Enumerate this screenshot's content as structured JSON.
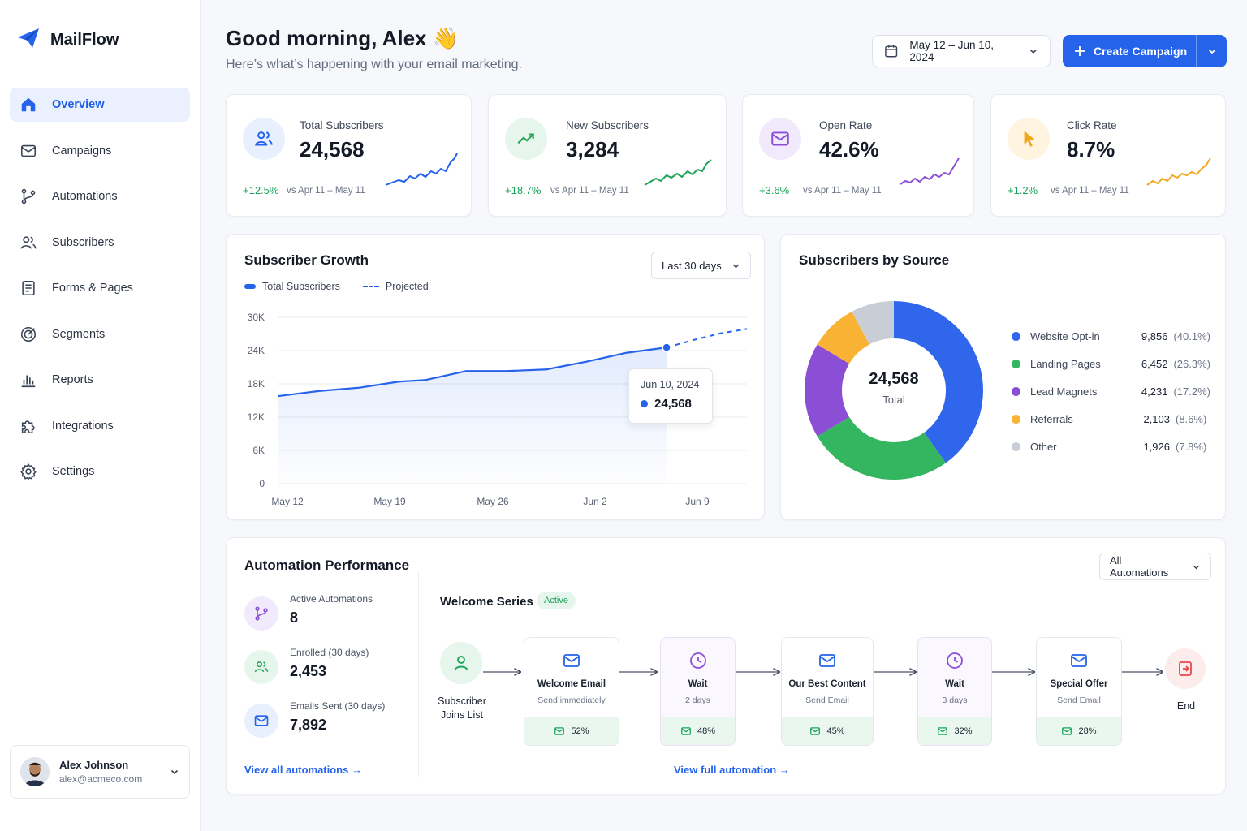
{
  "app": {
    "name": "MailFlow"
  },
  "sidebar": {
    "items": [
      {
        "label": "Overview",
        "icon": "home-icon",
        "active": true
      },
      {
        "label": "Campaigns",
        "icon": "mail-icon"
      },
      {
        "label": "Automations",
        "icon": "branch-icon"
      },
      {
        "label": "Subscribers",
        "icon": "users-icon"
      },
      {
        "label": "Forms & Pages",
        "icon": "form-icon"
      },
      {
        "label": "Segments",
        "icon": "target-icon"
      },
      {
        "label": "Reports",
        "icon": "bar-chart-icon"
      },
      {
        "label": "Integrations",
        "icon": "puzzle-icon"
      },
      {
        "label": "Settings",
        "icon": "gear-icon"
      }
    ],
    "user": {
      "name": "Alex Johnson",
      "email": "alex@acmeco.com"
    }
  },
  "header": {
    "greeting": "Good morning, Alex 👋",
    "subtitle": "Here’s what’s happening with your email marketing.",
    "date_range": "May 12 – Jun 10, 2024",
    "create_label": "Create Campaign"
  },
  "stats": [
    {
      "label": "Total Subscribers",
      "value": "24,568",
      "delta": "+12.5%",
      "vs": "vs Apr 11 – May 11",
      "color": "#2563eb",
      "icon": "users-icon"
    },
    {
      "label": "New Subscribers",
      "value": "3,284",
      "delta": "+18.7%",
      "vs": "vs Apr 11 – May 11",
      "color": "#22a55b",
      "icon": "trending-up-icon"
    },
    {
      "label": "Open Rate",
      "value": "42.6%",
      "delta": "+3.6%",
      "vs": "vs Apr 11 – May 11",
      "color": "#8b4fd6",
      "icon": "envelope-icon"
    },
    {
      "label": "Click Rate",
      "value": "8.7%",
      "delta": "+1.2%",
      "vs": "vs Apr 11 – May 11",
      "color": "#f2a81d",
      "icon": "cursor-icon"
    }
  ],
  "growth": {
    "title": "Subscriber Growth",
    "range": "Last 30 days",
    "legend_total": "Total Subscribers",
    "legend_projected": "Projected",
    "tooltip_date": "Jun 10, 2024",
    "tooltip_value": "24,568"
  },
  "chart_data": {
    "type": "line",
    "ylim": [
      0,
      30000
    ],
    "y_ticks": [
      "0",
      "6K",
      "12K",
      "18K",
      "24K",
      "30K"
    ],
    "x_ticks": [
      "May 12",
      "May 19",
      "May 26",
      "Jun 2",
      "Jun 9"
    ],
    "series": [
      {
        "name": "Total Subscribers",
        "points": [
          [
            0,
            15800
          ],
          [
            3,
            16700
          ],
          [
            6,
            17300
          ],
          [
            9,
            18400
          ],
          [
            11,
            18700
          ],
          [
            14,
            20300
          ],
          [
            17,
            20300
          ],
          [
            20,
            20600
          ],
          [
            23,
            22000
          ],
          [
            26,
            23600
          ],
          [
            29,
            24568
          ]
        ]
      },
      {
        "name": "Projected",
        "points": [
          [
            29,
            24568
          ],
          [
            31,
            25900
          ],
          [
            33,
            27100
          ],
          [
            35,
            27900
          ]
        ]
      }
    ]
  },
  "sources": {
    "title": "Subscribers by Source",
    "total": "24,568",
    "total_label": "Total",
    "items": [
      {
        "name": "Website Opt-in",
        "value": "9,856",
        "pct": "(40.1%)",
        "share": 40.1,
        "color": "#2f66eb"
      },
      {
        "name": "Landing Pages",
        "value": "6,452",
        "pct": "(26.3%)",
        "share": 26.3,
        "color": "#34b55f"
      },
      {
        "name": "Lead Magnets",
        "value": "4,231",
        "pct": "(17.2%)",
        "share": 17.2,
        "color": "#8b4fd6"
      },
      {
        "name": "Referrals",
        "value": "2,103",
        "pct": "(8.6%)",
        "share": 8.6,
        "color": "#f8b334"
      },
      {
        "name": "Other",
        "value": "1,926",
        "pct": "(7.8%)",
        "share": 7.8,
        "color": "#c9cdd6"
      }
    ]
  },
  "automation": {
    "title": "Automation Performance",
    "filter": "All Automations",
    "stats": [
      {
        "label": "Active Automations",
        "value": "8"
      },
      {
        "label": "Enrolled (30 days)",
        "value": "2,453"
      },
      {
        "label": "Emails Sent (30 days)",
        "value": "7,892"
      }
    ],
    "view_all": "View all automations →",
    "flow_name": "Welcome Series",
    "flow_status": "Active",
    "start_label": "Subscriber Joins List",
    "end_label": "End",
    "steps": [
      {
        "title": "Welcome Email",
        "sub": "Send immediately",
        "rate": "52%"
      },
      {
        "title": "Wait",
        "sub": "2 days",
        "rate": "48%"
      },
      {
        "title": "Our Best Content",
        "sub": "Send Email",
        "rate": "45%"
      },
      {
        "title": "Wait",
        "sub": "3 days",
        "rate": "32%"
      },
      {
        "title": "Special Offer",
        "sub": "Send Email",
        "rate": "28%"
      }
    ],
    "view_full": "View full automation →"
  }
}
